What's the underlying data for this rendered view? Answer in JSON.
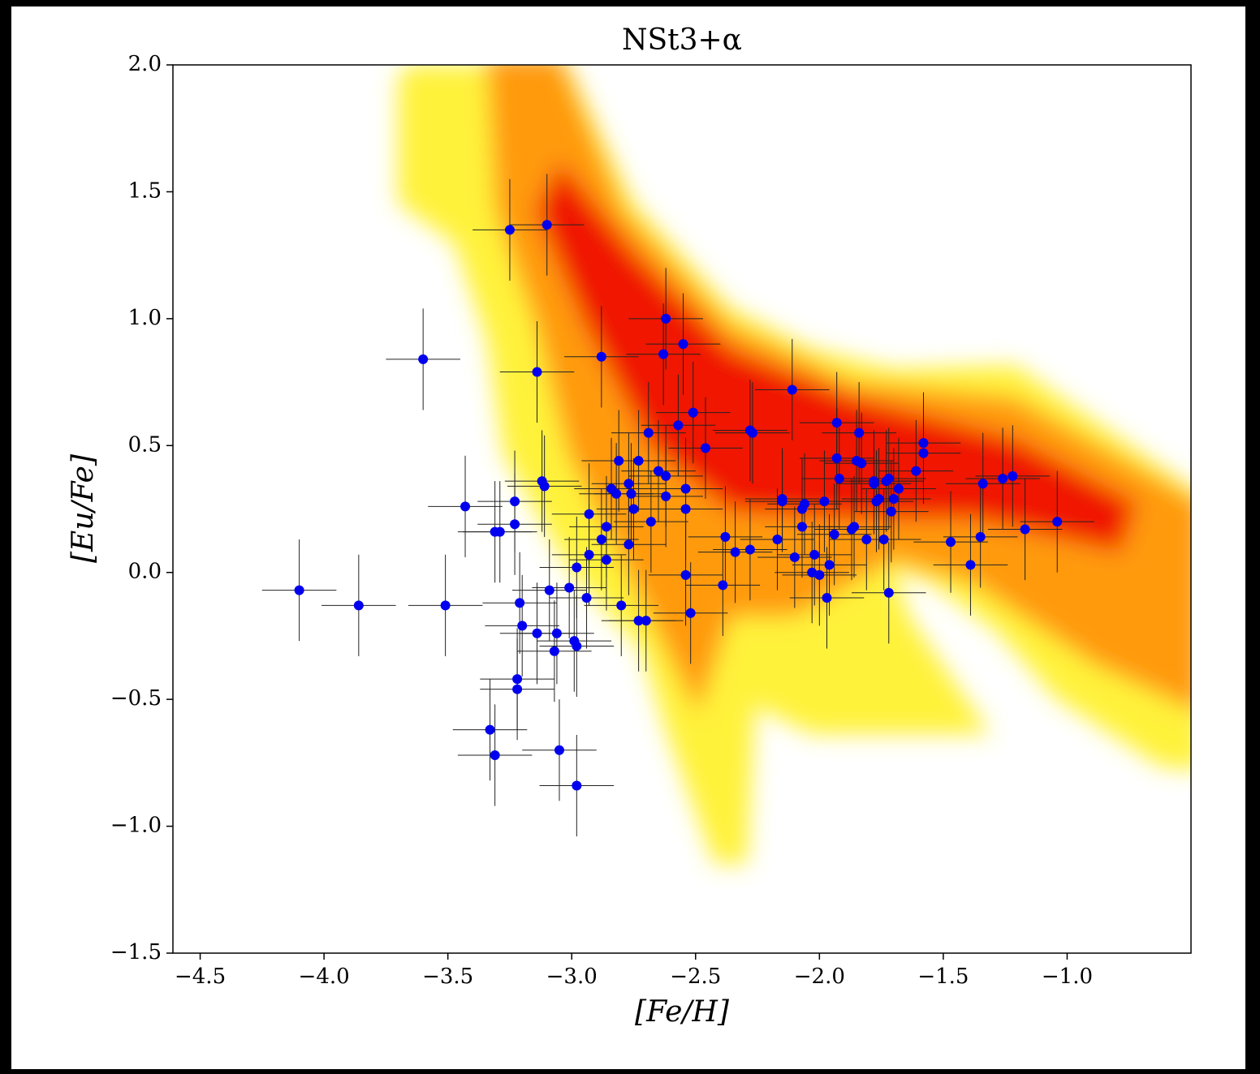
{
  "chart_data": {
    "type": "scatter",
    "title": "NSt3+α",
    "xlabel": "[Fe/H]",
    "ylabel": "[Eu/Fe]",
    "xlim": [
      -4.61,
      -0.5
    ],
    "ylim": [
      -1.5,
      2.0
    ],
    "xticks": [
      {
        "value": -4.5,
        "label": "−4.5"
      },
      {
        "value": -4.0,
        "label": "−4.0"
      },
      {
        "value": -3.5,
        "label": "−3.5"
      },
      {
        "value": -3.0,
        "label": "−3.0"
      },
      {
        "value": -2.5,
        "label": "−2.5"
      },
      {
        "value": -2.0,
        "label": "−2.0"
      },
      {
        "value": -1.5,
        "label": "−1.5"
      },
      {
        "value": -1.0,
        "label": "−1.0"
      }
    ],
    "yticks": [
      {
        "value": -1.5,
        "label": "−1.5"
      },
      {
        "value": -1.0,
        "label": "−1.0"
      },
      {
        "value": -0.5,
        "label": "−0.5"
      },
      {
        "value": 0.0,
        "label": "0.0"
      },
      {
        "value": 0.5,
        "label": "0.5"
      },
      {
        "value": 1.0,
        "label": "1.0"
      },
      {
        "value": 1.5,
        "label": "1.5"
      },
      {
        "value": 2.0,
        "label": "2.0"
      }
    ],
    "series": [
      {
        "color": "#0000ee",
        "xerr": 0.15,
        "yerr": 0.2,
        "x": [
          -4.1,
          -3.86,
          -3.6,
          -3.51,
          -3.43,
          -3.31,
          -3.29,
          -3.25,
          -3.1,
          -3.14,
          -3.23,
          -3.23,
          -3.12,
          -3.11,
          -3.21,
          -3.2,
          -3.14,
          -3.09,
          -3.22,
          -3.22,
          -3.33,
          -3.31,
          -3.06,
          -3.07,
          -3.05,
          -2.98,
          -3.01,
          -2.98,
          -2.99,
          -2.98,
          -2.94,
          -2.93,
          -2.93,
          -2.88,
          -2.86,
          -2.86,
          -2.84,
          -2.82,
          -2.88,
          -2.81,
          -2.8,
          -2.77,
          -2.76,
          -2.77,
          -2.75,
          -2.73,
          -2.73,
          -2.7,
          -2.69,
          -2.68,
          -2.65,
          -2.62,
          -2.62,
          -2.63,
          -2.62,
          -2.57,
          -2.55,
          -2.54,
          -2.54,
          -2.54,
          -2.52,
          -2.51,
          -2.46,
          -2.38,
          -2.39,
          -2.34,
          -2.28,
          -2.28,
          -2.27,
          -2.17,
          -2.15,
          -2.15,
          -2.11,
          -2.1,
          -2.07,
          -2.06,
          -2.07,
          -2.03,
          -2.02,
          -2.0,
          -1.98,
          -1.97,
          -1.96,
          -1.94,
          -1.93,
          -1.93,
          -1.92,
          -1.87,
          -1.86,
          -1.85,
          -1.84,
          -1.83,
          -1.81,
          -1.78,
          -1.78,
          -1.77,
          -1.76,
          -1.74,
          -1.73,
          -1.72,
          -1.72,
          -1.71,
          -1.7,
          -1.68,
          -1.61,
          -1.58,
          -1.58,
          -1.47,
          -1.39,
          -1.35,
          -1.34,
          -1.26,
          -1.22,
          -1.17,
          -1.04
        ],
        "values": [
          -0.07,
          -0.13,
          0.84,
          -0.13,
          0.26,
          0.16,
          0.16,
          1.35,
          1.37,
          0.79,
          0.28,
          0.19,
          0.36,
          0.34,
          -0.12,
          -0.21,
          -0.24,
          -0.07,
          -0.42,
          -0.46,
          -0.62,
          -0.72,
          -0.24,
          -0.31,
          -0.7,
          -0.84,
          -0.06,
          0.02,
          -0.27,
          -0.29,
          -0.1,
          0.07,
          0.23,
          0.13,
          0.18,
          0.05,
          0.33,
          0.31,
          0.85,
          0.44,
          -0.13,
          0.35,
          0.31,
          0.11,
          0.25,
          0.44,
          -0.19,
          -0.19,
          0.55,
          0.2,
          0.4,
          0.38,
          0.3,
          0.86,
          1.0,
          0.58,
          0.9,
          0.33,
          0.25,
          -0.01,
          -0.16,
          0.63,
          0.49,
          0.14,
          -0.05,
          0.08,
          0.09,
          0.56,
          0.55,
          0.13,
          0.29,
          0.28,
          0.72,
          0.06,
          0.25,
          0.27,
          0.18,
          0.0,
          0.07,
          -0.01,
          0.28,
          -0.1,
          0.03,
          0.15,
          0.59,
          0.45,
          0.37,
          0.17,
          0.18,
          0.44,
          0.55,
          0.43,
          0.13,
          0.36,
          0.35,
          0.28,
          0.29,
          0.13,
          0.36,
          0.37,
          -0.08,
          0.24,
          0.29,
          0.33,
          0.4,
          0.51,
          0.47,
          0.12,
          0.03,
          0.14,
          0.35,
          0.37,
          0.38,
          0.17,
          0.2
        ]
      }
    ]
  }
}
